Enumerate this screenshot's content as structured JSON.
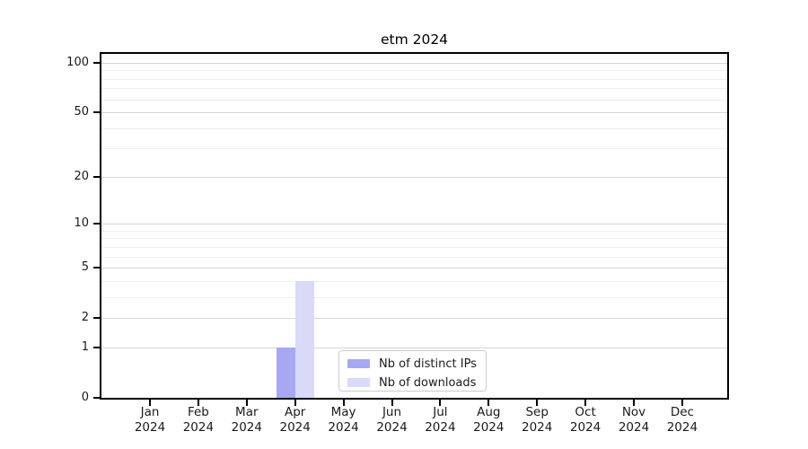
{
  "chart_data": {
    "type": "bar",
    "title": "etm 2024",
    "categories": [
      "Jan 2024",
      "Feb 2024",
      "Mar 2024",
      "Apr 2024",
      "May 2024",
      "Jun 2024",
      "Jul 2024",
      "Aug 2024",
      "Sep 2024",
      "Oct 2024",
      "Nov 2024",
      "Dec 2024"
    ],
    "series": [
      {
        "name": "Nb of distinct IPs",
        "color": "#a6a9f1",
        "values": [
          0,
          0,
          0,
          1,
          0,
          0,
          0,
          0,
          0,
          0,
          0,
          0
        ]
      },
      {
        "name": "Nb of downloads",
        "color": "#d8daf7",
        "values": [
          0,
          0,
          0,
          4,
          0,
          0,
          0,
          0,
          0,
          0,
          0,
          0
        ]
      }
    ],
    "xlabel": "",
    "ylabel": "",
    "yscale": "log1p",
    "ylim": [
      0,
      113
    ],
    "y_major_ticks": [
      0,
      1,
      2,
      5,
      10,
      20,
      50,
      100
    ],
    "y_minor_ticks": [
      3,
      4,
      6,
      7,
      8,
      9,
      30,
      40,
      60,
      70,
      80,
      90
    ],
    "grid": true,
    "legend_position": "lower center"
  },
  "colors": {
    "grid_major": "#d6d6d6",
    "grid_minor": "#ededed",
    "axis": "#000000",
    "text": "#1a1a1a",
    "legend_border": "#cccccc"
  }
}
